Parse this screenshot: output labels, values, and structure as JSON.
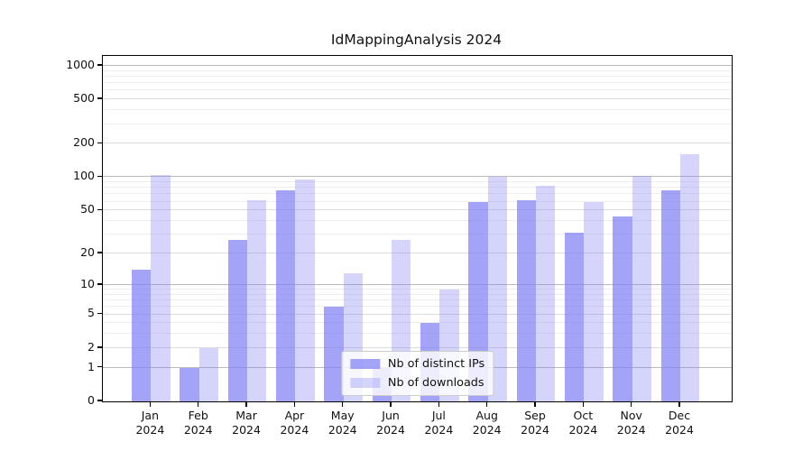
{
  "figure": {
    "title": "IdMappingAnalysis 2024",
    "background": "#ffffff"
  },
  "style": {
    "axis_color": "#000000",
    "grid_major_color": "#bbbbbb",
    "grid_mid_color": "#dcdcdc",
    "grid_minor_color": "#eeeeee",
    "bar_base_color": "#8080f5"
  },
  "legend": {
    "position": "lower center",
    "items": [
      {
        "label": "Nb of distinct IPs",
        "swatch_color": "rgba(128,128,245,0.72)"
      },
      {
        "label": "Nb of downloads",
        "swatch_color": "rgba(128,128,245,0.33)"
      }
    ]
  },
  "chart_data": {
    "type": "bar",
    "title": "IdMappingAnalysis 2024",
    "categories": [
      "Jan 2024",
      "Feb 2024",
      "Mar 2024",
      "Apr 2024",
      "May 2024",
      "Jun 2024",
      "Jul 2024",
      "Aug 2024",
      "Sep 2024",
      "Oct 2024",
      "Nov 2024",
      "Dec 2024"
    ],
    "series": [
      {
        "name": "Nb of distinct IPs",
        "color": "rgba(128,128,245,0.72)",
        "values": [
          14,
          1,
          27,
          76,
          6,
          1,
          4,
          60,
          62,
          31,
          44,
          76
        ]
      },
      {
        "name": "Nb of downloads",
        "color": "rgba(128,128,245,0.33)",
        "values": [
          105,
          2,
          62,
          95,
          13,
          27,
          9,
          100,
          84,
          60,
          103,
          162
        ]
      }
    ],
    "xlabel": "",
    "ylabel": "",
    "yscale": "log1p",
    "ylim": [
      0,
      1224
    ],
    "yticks": [
      0,
      1,
      2,
      5,
      10,
      20,
      50,
      100,
      200,
      500,
      1000
    ],
    "grid": true,
    "legend_position": "lower center"
  }
}
